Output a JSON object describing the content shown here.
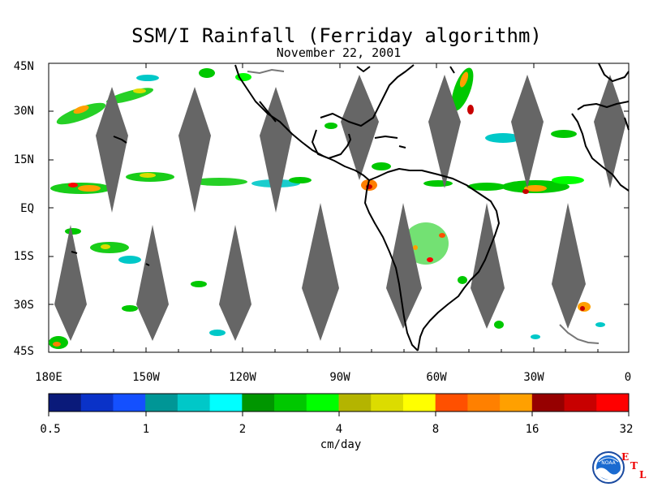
{
  "title": "SSM/I Rainfall (Ferriday algorithm)",
  "subtitle": "November 22, 2001",
  "map": {
    "lat_labels": [
      "45N",
      "30N",
      "15N",
      "EQ",
      "15S",
      "30S",
      "45S"
    ],
    "lon_labels": [
      "180E",
      "150W",
      "120W",
      "90W",
      "60W",
      "30W",
      "0"
    ],
    "land_outline_color": "#000000",
    "swath_gap_color": "#666666"
  },
  "colorbar": {
    "tick_labels": [
      "0.5",
      "1",
      "2",
      "4",
      "8",
      "16",
      "32"
    ],
    "units": "cm/day",
    "colors": [
      "#0a1a7a",
      "#0a32c8",
      "#1450ff",
      "#009696",
      "#00c8c8",
      "#00ffff",
      "#009600",
      "#00c800",
      "#00ff00",
      "#b4b400",
      "#dcdc00",
      "#ffff00",
      "#ff5000",
      "#ff8000",
      "#ffa000",
      "#960000",
      "#c80000",
      "#ff0000"
    ]
  },
  "logo": {
    "noaa_text": "NOAA",
    "etl_letters": [
      "E",
      "T",
      "L"
    ]
  }
}
